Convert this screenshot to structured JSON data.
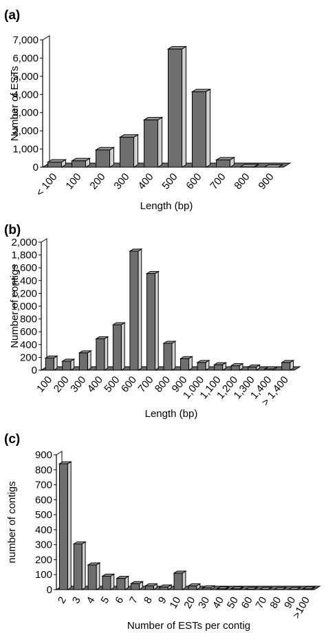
{
  "colors": {
    "bar_front": "#6e6e6e",
    "bar_side": "#cfcfcf",
    "bar_top": "#9a9a9a",
    "floor": "#6b6b6b",
    "wall": "#ffffff",
    "outline": "#000000"
  },
  "chart_data": [
    {
      "panel_label": "(a)",
      "type": "bar",
      "style": "3d",
      "title": "",
      "xlabel": "Length (bp)",
      "ylabel": "Number of ESTs",
      "ylim": [
        0,
        7000
      ],
      "yticks": [
        "0",
        "1,000",
        "2,000",
        "3,000",
        "4,000",
        "5,000",
        "6,000",
        "7,000"
      ],
      "categories": [
        "< 100",
        "100",
        "200",
        "300",
        "400",
        "500",
        "600",
        "700",
        "800",
        "900"
      ],
      "values": [
        280,
        350,
        950,
        1650,
        2600,
        6500,
        4150,
        400,
        20,
        0
      ]
    },
    {
      "panel_label": "(b)",
      "type": "bar",
      "style": "3d",
      "title": "",
      "xlabel": "Length (bp)",
      "ylabel": "Number of contigs",
      "ylim": [
        0,
        2000
      ],
      "yticks": [
        "0",
        "200",
        "400",
        "600",
        "800",
        "1,000",
        "1,200",
        "1,400",
        "1,600",
        "1,800",
        "2,000"
      ],
      "categories": [
        "100",
        "200",
        "300",
        "400",
        "500",
        "600",
        "700",
        "800",
        "900",
        "1,000",
        "1,100",
        "1,200",
        "1,300",
        "1,400",
        "> 1,400"
      ],
      "values": [
        190,
        140,
        270,
        490,
        710,
        1860,
        1510,
        420,
        180,
        120,
        85,
        70,
        50,
        20,
        120
      ]
    },
    {
      "panel_label": "(c)",
      "type": "bar",
      "style": "3d",
      "title": "",
      "xlabel": "Number of ESTs per contig",
      "ylabel": "number of contigs",
      "ylim": [
        0,
        900
      ],
      "yticks": [
        "0",
        "100",
        "200",
        "300",
        "400",
        "500",
        "600",
        "700",
        "800",
        "900"
      ],
      "categories": [
        "2",
        "3",
        "4",
        "5",
        "6",
        "7",
        "8",
        "9",
        "10",
        "20",
        "30",
        "40",
        "50",
        "60",
        "70",
        "80",
        "90",
        ">100"
      ],
      "values": [
        840,
        305,
        165,
        90,
        75,
        40,
        25,
        18,
        110,
        25,
        12,
        5,
        5,
        3,
        2,
        1,
        1,
        5
      ]
    }
  ]
}
